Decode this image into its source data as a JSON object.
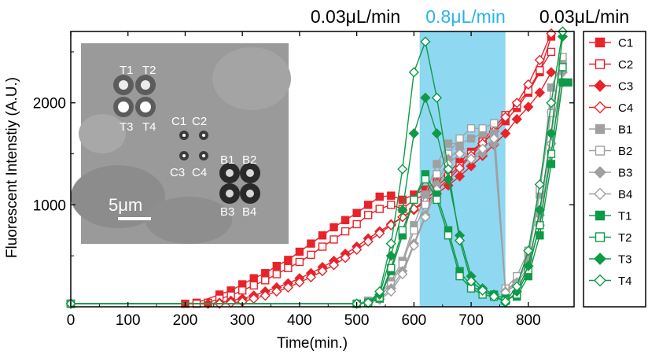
{
  "chart_data": {
    "type": "scatter",
    "xlabel": "Time(min.)",
    "ylabel": "Fluorescent Intenstiy (A.U.)",
    "xlim": [
      0,
      880
    ],
    "ylim": [
      0,
      2700
    ],
    "xticks": [
      0,
      100,
      200,
      300,
      400,
      500,
      600,
      700,
      800
    ],
    "yticks": [
      1000,
      2000
    ],
    "flow_regions": [
      {
        "label": "0.03μL/min",
        "color": "#000000"
      },
      {
        "label": "0.8μL/min",
        "color": "#28b4e6",
        "start": 610,
        "end": 760
      },
      {
        "label": "0.03μL/min",
        "color": "#000000"
      }
    ],
    "highlight_color": "#8fd8f2",
    "inset": {
      "cell_labels": [
        "T1",
        "T2",
        "T3",
        "T4",
        "C1",
        "C2",
        "C3",
        "C4",
        "B1",
        "B2",
        "B3",
        "B4"
      ],
      "scale_bar_label": "5μm"
    },
    "series": [
      {
        "name": "C1",
        "color": "#e8232a",
        "marker": "square",
        "fill": true,
        "x": [
          0,
          200,
          220,
          260,
          280,
          300,
          320,
          340,
          360,
          380,
          400,
          420,
          440,
          460,
          480,
          500,
          520,
          540,
          560,
          580,
          600,
          620,
          640,
          660,
          680,
          700,
          720,
          740,
          760,
          780,
          800,
          820,
          840
        ],
        "y": [
          30,
          30,
          40,
          120,
          160,
          220,
          280,
          330,
          400,
          460,
          540,
          620,
          700,
          780,
          850,
          920,
          1000,
          1080,
          1090,
          1050,
          1100,
          1150,
          1230,
          1320,
          1420,
          1520,
          1620,
          1700,
          1820,
          1950,
          2100,
          2300,
          2650
        ]
      },
      {
        "name": "C2",
        "color": "#e8232a",
        "marker": "square",
        "fill": false,
        "x": [
          0,
          220,
          240,
          260,
          280,
          300,
          320,
          340,
          360,
          380,
          400,
          420,
          440,
          460,
          480,
          500,
          520,
          540,
          560,
          580,
          600,
          620,
          640,
          660,
          680,
          700,
          720,
          740,
          760,
          780,
          800,
          820,
          840
        ],
        "y": [
          30,
          30,
          40,
          80,
          110,
          160,
          210,
          260,
          320,
          380,
          440,
          510,
          590,
          660,
          740,
          810,
          900,
          960,
          1000,
          960,
          1050,
          1100,
          1180,
          1280,
          1380,
          1500,
          1620,
          1760,
          1880,
          1980,
          2120,
          2320,
          2500
        ]
      },
      {
        "name": "C3",
        "color": "#e8232a",
        "marker": "diamond",
        "fill": true,
        "x": [
          0,
          240,
          260,
          280,
          300,
          320,
          340,
          360,
          380,
          400,
          420,
          440,
          460,
          480,
          500,
          520,
          540,
          560,
          580,
          600,
          620,
          640,
          660,
          680,
          700,
          720,
          740,
          760,
          780,
          800,
          820,
          840
        ],
        "y": [
          30,
          30,
          40,
          60,
          80,
          110,
          150,
          190,
          230,
          280,
          330,
          390,
          450,
          520,
          590,
          670,
          740,
          810,
          880,
          950,
          1030,
          1110,
          1190,
          1280,
          1380,
          1480,
          1590,
          1700,
          1840,
          1960,
          2100,
          2300
        ]
      },
      {
        "name": "C4",
        "color": "#e8232a",
        "marker": "diamond",
        "fill": false,
        "x": [
          0,
          260,
          280,
          300,
          320,
          340,
          360,
          380,
          400,
          420,
          440,
          460,
          480,
          500,
          520,
          540,
          560,
          580,
          600,
          620,
          640,
          660,
          680,
          700,
          720,
          740,
          760,
          780,
          800,
          820,
          840
        ],
        "y": [
          30,
          30,
          40,
          50,
          80,
          110,
          150,
          190,
          240,
          290,
          350,
          410,
          480,
          560,
          640,
          720,
          800,
          880,
          960,
          1050,
          1150,
          1250,
          1360,
          1480,
          1600,
          1720,
          1860,
          2000,
          2180,
          2420,
          2680
        ]
      },
      {
        "name": "B1",
        "color": "#a0a0a0",
        "marker": "square",
        "fill": true,
        "x": [
          0,
          500,
          520,
          540,
          560,
          580,
          600,
          620,
          640,
          660,
          680,
          700,
          720,
          740,
          760,
          780,
          800,
          820,
          840,
          860
        ],
        "y": [
          30,
          30,
          60,
          120,
          250,
          450,
          800,
          1100,
          1400,
          1600,
          1600,
          1650,
          1700,
          1700,
          160,
          250,
          500,
          1100,
          2150,
          2400
        ]
      },
      {
        "name": "B2",
        "color": "#a0a0a0",
        "marker": "square",
        "fill": false,
        "x": [
          0,
          500,
          520,
          540,
          560,
          580,
          600,
          620,
          640,
          660,
          680,
          700,
          720,
          740,
          760,
          780,
          800,
          820,
          840,
          860
        ],
        "y": [
          30,
          30,
          50,
          100,
          220,
          420,
          750,
          1000,
          1300,
          1500,
          1650,
          1750,
          1750,
          1800,
          180,
          300,
          550,
          1150,
          1900,
          2450
        ]
      },
      {
        "name": "B3",
        "color": "#a0a0a0",
        "marker": "diamond",
        "fill": true,
        "x": [
          0,
          500,
          520,
          540,
          560,
          580,
          600,
          620,
          640,
          660,
          680,
          700,
          720,
          740,
          760,
          780,
          800,
          820,
          840,
          860
        ],
        "y": [
          30,
          30,
          40,
          80,
          180,
          350,
          620,
          900,
          1200,
          1450,
          1550,
          1450,
          1500,
          1600,
          150,
          240,
          450,
          900,
          1700,
          2300
        ]
      },
      {
        "name": "B4",
        "color": "#a0a0a0",
        "marker": "diamond",
        "fill": false,
        "x": [
          0,
          500,
          520,
          540,
          560,
          580,
          600,
          620,
          640,
          660,
          680,
          700,
          720,
          740,
          760,
          780,
          800,
          820,
          840,
          860
        ],
        "y": [
          30,
          30,
          40,
          70,
          150,
          320,
          600,
          880,
          1150,
          1400,
          1500,
          1450,
          1550,
          1650,
          140,
          220,
          400,
          800,
          1600,
          2200
        ]
      },
      {
        "name": "T1",
        "color": "#0f9a48",
        "marker": "square",
        "fill": true,
        "x": [
          0,
          500,
          520,
          540,
          560,
          580,
          600,
          620,
          640,
          660,
          680,
          700,
          720,
          740,
          760,
          780,
          800,
          820,
          840,
          860,
          870
        ],
        "y": [
          30,
          30,
          40,
          80,
          350,
          700,
          1050,
          1300,
          1100,
          750,
          350,
          200,
          150,
          120,
          80,
          100,
          300,
          700,
          1400,
          2200,
          2200
        ]
      },
      {
        "name": "T2",
        "color": "#0f9a48",
        "marker": "square",
        "fill": false,
        "x": [
          0,
          500,
          520,
          540,
          560,
          580,
          600,
          620,
          640,
          660,
          680,
          700,
          720,
          740,
          760,
          780,
          800,
          820,
          840,
          860
        ],
        "y": [
          30,
          30,
          40,
          90,
          380,
          750,
          1050,
          1250,
          1050,
          700,
          300,
          180,
          120,
          100,
          60,
          120,
          360,
          800,
          1500,
          2350
        ]
      },
      {
        "name": "T3",
        "color": "#0f9a48",
        "marker": "diamond",
        "fill": true,
        "x": [
          0,
          500,
          520,
          540,
          560,
          580,
          600,
          620,
          640,
          660,
          680,
          700,
          720,
          740,
          760,
          780,
          800,
          820,
          840,
          860
        ],
        "y": [
          30,
          30,
          40,
          120,
          500,
          950,
          1700,
          2050,
          1700,
          1250,
          700,
          300,
          180,
          120,
          40,
          150,
          400,
          950,
          1700,
          2650
        ]
      },
      {
        "name": "T4",
        "color": "#0f9a48",
        "marker": "diamond",
        "fill": false,
        "x": [
          0,
          500,
          520,
          540,
          560,
          580,
          600,
          620,
          640,
          660,
          680,
          700,
          720,
          740,
          760,
          780,
          800,
          820,
          840,
          860
        ],
        "y": [
          30,
          30,
          40,
          150,
          620,
          1350,
          2300,
          2600,
          2050,
          1350,
          650,
          250,
          160,
          100,
          50,
          200,
          550,
          1200,
          2000,
          2700
        ]
      }
    ]
  }
}
